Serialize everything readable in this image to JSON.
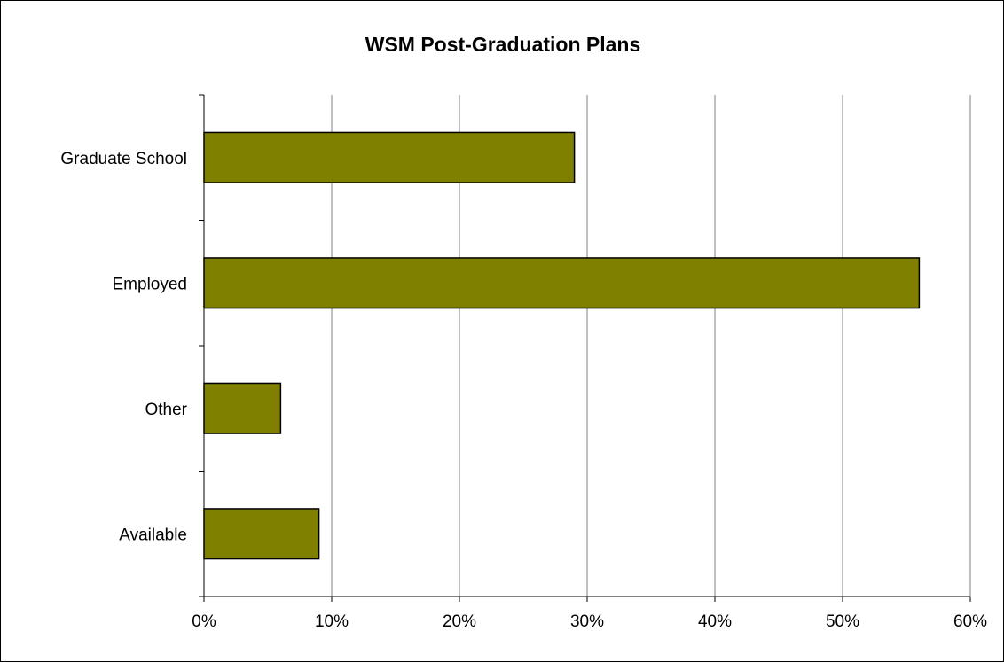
{
  "chart_data": {
    "type": "bar",
    "orientation": "horizontal",
    "title": "WSM Post-Graduation Plans",
    "xlabel": "",
    "ylabel": "",
    "categories": [
      "Graduate School",
      "Employed",
      "Other",
      "Available"
    ],
    "values": [
      29,
      56,
      6,
      9
    ],
    "value_unit": "%",
    "xlim": [
      0,
      60
    ],
    "xticks": [
      0,
      10,
      20,
      30,
      40,
      50,
      60
    ],
    "xtick_labels": [
      "0%",
      "10%",
      "20%",
      "30%",
      "40%",
      "50%",
      "60%"
    ],
    "grid": "vertical",
    "legend": "none",
    "bar_color": "#808000",
    "bar_stroke": "#000000",
    "grid_color": "#808080",
    "axis_color": "#000000"
  }
}
